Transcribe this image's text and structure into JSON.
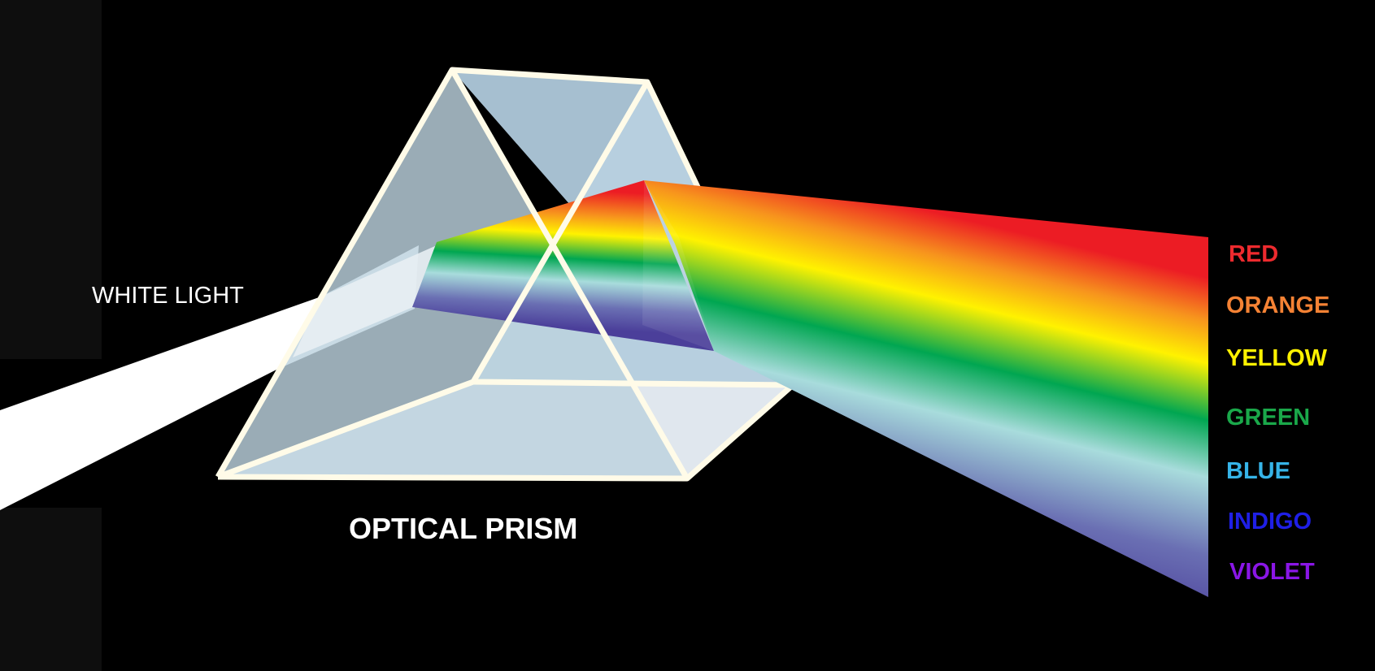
{
  "labels": {
    "white_light": "WHITE LIGHT",
    "optical_prism": "OPTICAL PRISM"
  },
  "spectrum": [
    {
      "name": "RED",
      "color": "#ed2a2e"
    },
    {
      "name": "ORANGE",
      "color": "#f58234"
    },
    {
      "name": "YELLOW",
      "color": "#fff200"
    },
    {
      "name": "GREEN",
      "color": "#1aa84a"
    },
    {
      "name": "BLUE",
      "color": "#36b4e8"
    },
    {
      "name": "INDIGO",
      "color": "#1f1fe6"
    },
    {
      "name": "VIOLET",
      "color": "#8a16e6"
    }
  ]
}
